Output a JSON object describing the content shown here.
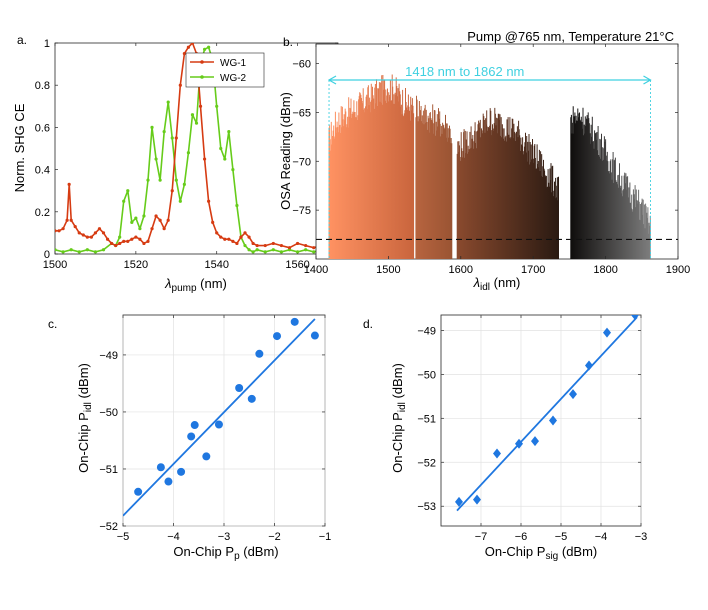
{
  "figure_title": "Pump @765 nm, Temperature 21°C",
  "chart_data": [
    {
      "panel": "a.",
      "type": "line",
      "xlabel": "λpump (nm)",
      "xlabel_main": "λ",
      "xlabel_sub": "pump",
      "xlabel_unit": " (nm)",
      "ylabel": "Norm. SHG CE",
      "xlim": [
        1500,
        1570
      ],
      "ylim": [
        0,
        1
      ],
      "xticks": [
        1500,
        1520,
        1540,
        1560
      ],
      "yticks": [
        0,
        0.2,
        0.4,
        0.6,
        0.8,
        1
      ],
      "ytick_labels": [
        "0",
        "0.2",
        "0.4",
        "0.6",
        "0.8",
        "1"
      ],
      "grid": false,
      "legend_position": "top-right",
      "series": [
        {
          "name": "WG-1",
          "color": "#d63b12",
          "x": [
            1500,
            1501,
            1502,
            1503,
            1503.5,
            1504,
            1505,
            1506,
            1507,
            1508,
            1509,
            1510,
            1511,
            1512,
            1513,
            1514,
            1515,
            1516,
            1517,
            1518,
            1519,
            1520,
            1521,
            1522,
            1523,
            1524,
            1525,
            1526,
            1527,
            1528,
            1529,
            1530,
            1531,
            1532,
            1533,
            1534,
            1535,
            1536,
            1537,
            1538,
            1539,
            1540,
            1541,
            1542,
            1543,
            1544,
            1545,
            1546,
            1547,
            1548,
            1549,
            1550,
            1552,
            1554,
            1556,
            1558,
            1560,
            1562,
            1564,
            1566,
            1568,
            1570
          ],
          "y": [
            0.11,
            0.11,
            0.12,
            0.16,
            0.33,
            0.16,
            0.13,
            0.1,
            0.09,
            0.08,
            0.08,
            0.1,
            0.12,
            0.1,
            0.07,
            0.05,
            0.04,
            0.05,
            0.06,
            0.06,
            0.07,
            0.08,
            0.07,
            0.05,
            0.06,
            0.12,
            0.18,
            0.16,
            0.12,
            0.16,
            0.3,
            0.55,
            0.8,
            0.95,
            0.98,
            1.0,
            0.95,
            0.7,
            0.45,
            0.25,
            0.15,
            0.1,
            0.08,
            0.07,
            0.07,
            0.06,
            0.05,
            0.08,
            0.1,
            0.08,
            0.05,
            0.04,
            0.04,
            0.05,
            0.04,
            0.03,
            0.05,
            0.04,
            0.03,
            0.04,
            0.03,
            0.03
          ]
        },
        {
          "name": "WG-2",
          "color": "#66cc1a",
          "x": [
            1500,
            1502,
            1504,
            1506,
            1508,
            1510,
            1512,
            1514,
            1515,
            1516,
            1517,
            1518,
            1519,
            1520,
            1521,
            1522,
            1523,
            1524,
            1525,
            1526,
            1527,
            1528,
            1529,
            1530,
            1531,
            1532,
            1533,
            1534,
            1535,
            1536,
            1537,
            1538,
            1539,
            1540,
            1541,
            1542,
            1543,
            1544,
            1545,
            1546,
            1547,
            1548,
            1549,
            1550,
            1552,
            1554,
            1556,
            1558,
            1560,
            1562,
            1564,
            1566,
            1568,
            1570
          ],
          "y": [
            0.02,
            0.01,
            0.02,
            0.01,
            0.02,
            0.01,
            0.02,
            0.05,
            0.04,
            0.08,
            0.25,
            0.3,
            0.15,
            0.17,
            0.12,
            0.18,
            0.35,
            0.6,
            0.45,
            0.35,
            0.58,
            0.72,
            0.55,
            0.35,
            0.25,
            0.33,
            0.48,
            0.66,
            0.62,
            0.9,
            0.97,
            0.98,
            0.92,
            0.7,
            0.5,
            0.45,
            0.58,
            0.4,
            0.23,
            0.08,
            0.04,
            0.02,
            0.01,
            0.02,
            0.01,
            0.02,
            0.01,
            0.02,
            0.01,
            0.02,
            0.01,
            0.02,
            0.01,
            0.02
          ]
        }
      ]
    },
    {
      "panel": "b.",
      "type": "area",
      "xlabel": "λidl (nm)",
      "xlabel_main": "λ",
      "xlabel_sub": "idl",
      "xlabel_unit": " (nm)",
      "ylabel": "OSA Reading (dBm)",
      "xlim": [
        1400,
        1900
      ],
      "ylim": [
        -80,
        -58
      ],
      "xticks": [
        1400,
        1500,
        1600,
        1700,
        1800,
        1900
      ],
      "yticks": [
        -60,
        -65,
        -70,
        -75
      ],
      "grid": false,
      "annotation": "1418 nm to 1862 nm",
      "annotation_range": [
        1418,
        1862
      ],
      "annotation_color": "#3fd0e0",
      "noise_floor": -78,
      "segments": [
        {
          "x": [
            1418,
            1535
          ],
          "color_start": "#ff9262",
          "color_end": "#c9653d",
          "envelope": [
            [
              1418,
              -69
            ],
            [
              1430,
              -67
            ],
            [
              1450,
              -66
            ],
            [
              1470,
              -65
            ],
            [
              1490,
              -64
            ],
            [
              1500,
              -63.5
            ],
            [
              1510,
              -64
            ],
            [
              1520,
              -65
            ],
            [
              1535,
              -66
            ]
          ]
        },
        {
          "x": [
            1538,
            1588
          ],
          "color_start": "#b7643f",
          "color_end": "#9a5433",
          "envelope": [
            [
              1538,
              -65.5
            ],
            [
              1550,
              -66.5
            ],
            [
              1565,
              -67
            ],
            [
              1580,
              -67.5
            ],
            [
              1588,
              -68.5
            ]
          ]
        },
        {
          "x": [
            1595,
            1735
          ],
          "color_start": "#8a4a2e",
          "color_end": "#2a1a12",
          "envelope": [
            [
              1595,
              -70
            ],
            [
              1620,
              -68.5
            ],
            [
              1640,
              -67
            ],
            [
              1660,
              -67.5
            ],
            [
              1680,
              -68.5
            ],
            [
              1700,
              -70.5
            ],
            [
              1720,
              -72.5
            ],
            [
              1735,
              -74
            ]
          ]
        },
        {
          "x": [
            1752,
            1862
          ],
          "color_start": "#0f0d0c",
          "color_end": "#7d7d7d",
          "envelope": [
            [
              1752,
              -67
            ],
            [
              1765,
              -66.5
            ],
            [
              1775,
              -67.5
            ],
            [
              1790,
              -69
            ],
            [
              1805,
              -71
            ],
            [
              1820,
              -73
            ],
            [
              1835,
              -74.5
            ],
            [
              1850,
              -76
            ],
            [
              1862,
              -78
            ]
          ]
        }
      ]
    },
    {
      "panel": "c.",
      "type": "scatter",
      "xlabel": "On-Chip Pp (dBm)",
      "xlabel_main": "On-Chip P",
      "xlabel_sub": "p",
      "xlabel_unit": " (dBm)",
      "ylabel": "On-Chip Pidl (dBm)",
      "ylabel_main": "On-Chip P",
      "ylabel_sub": "idl",
      "ylabel_unit": " (dBm)",
      "xlim": [
        -5,
        -1
      ],
      "ylim": [
        -52,
        -48.3
      ],
      "xticks": [
        -5,
        -4,
        -3,
        -2,
        -1
      ],
      "yticks": [
        -52,
        -51,
        -50,
        -49
      ],
      "grid": true,
      "marker": "circle",
      "color": "#1f77e0",
      "points": [
        [
          -4.7,
          -51.4
        ],
        [
          -4.25,
          -50.97
        ],
        [
          -4.1,
          -51.22
        ],
        [
          -3.85,
          -51.05
        ],
        [
          -3.65,
          -50.43
        ],
        [
          -3.58,
          -50.23
        ],
        [
          -3.35,
          -50.78
        ],
        [
          -3.1,
          -50.22
        ],
        [
          -2.7,
          -49.58
        ],
        [
          -2.45,
          -49.77
        ],
        [
          -2.3,
          -48.98
        ],
        [
          -1.95,
          -48.67
        ],
        [
          -1.6,
          -48.42
        ],
        [
          -1.2,
          -48.66
        ]
      ],
      "fit": {
        "x": [
          -5,
          -1.2
        ],
        "y": [
          -51.82,
          -48.37
        ]
      }
    },
    {
      "panel": "d.",
      "type": "scatter",
      "xlabel": "On-Chip Psig (dBm)",
      "xlabel_main": "On-Chip P",
      "xlabel_sub": "sig",
      "xlabel_unit": " (dBm)",
      "ylabel": "On-Chip Pidl (dBm)",
      "ylabel_main": "On-Chip P",
      "ylabel_sub": "idl",
      "ylabel_unit": " (dBm)",
      "xlim": [
        -8,
        -3
      ],
      "ylim": [
        -53.45,
        -48.65
      ],
      "xticks": [
        -7,
        -6,
        -5,
        -4,
        -3
      ],
      "yticks": [
        -53,
        -52,
        -51,
        -50,
        -49
      ],
      "grid": true,
      "marker": "diamond",
      "color": "#1f77e0",
      "points": [
        [
          -7.55,
          -52.9
        ],
        [
          -7.1,
          -52.85
        ],
        [
          -6.6,
          -51.8
        ],
        [
          -6.05,
          -51.58
        ],
        [
          -5.65,
          -51.52
        ],
        [
          -5.2,
          -51.05
        ],
        [
          -4.7,
          -50.45
        ],
        [
          -4.3,
          -49.8
        ],
        [
          -3.85,
          -49.05
        ],
        [
          -3.15,
          -48.65
        ]
      ],
      "fit": {
        "x": [
          -7.6,
          -3.1
        ],
        "y": [
          -53.1,
          -48.7
        ]
      }
    }
  ]
}
